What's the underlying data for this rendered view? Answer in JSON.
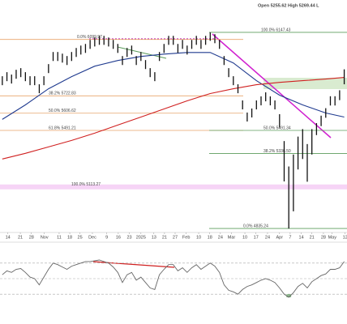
{
  "chart_data": {
    "type": "ohlc",
    "header": "Open 5255.62   High 5269.44   L",
    "xlim": [
      -0.5,
      74.6
    ],
    "ylim": [
      4765,
      6364
    ],
    "bar_color": "#111111",
    "high": [
      5854,
      5881,
      5865,
      5897,
      5908,
      5881,
      5854,
      5854,
      5800,
      5854,
      5935,
      6016,
      6016,
      6005,
      5989,
      6016,
      6043,
      6059,
      6070,
      6097,
      6113,
      6124,
      6124,
      6113,
      6097,
      6070,
      5989,
      6043,
      6059,
      5989,
      6016,
      5962,
      5908,
      5881,
      6016,
      6070,
      6124,
      6124,
      6070,
      6097,
      6059,
      6097,
      6124,
      6097,
      6124,
      6147,
      6135,
      6097,
      5989,
      5908,
      5854,
      5800,
      5692,
      5611,
      5638,
      5692,
      5719,
      5746,
      5719,
      5692,
      5600,
      5420,
      5250,
      5330,
      5450,
      5500,
      5400,
      5500,
      5540,
      5590,
      5640,
      5720,
      5720,
      5760,
      5900
    ],
    "low": [
      5794,
      5821,
      5805,
      5837,
      5848,
      5821,
      5794,
      5794,
      5740,
      5794,
      5875,
      5956,
      5956,
      5945,
      5929,
      5956,
      5983,
      5999,
      6010,
      6037,
      6053,
      6064,
      6064,
      6053,
      6037,
      6010,
      5929,
      5983,
      5999,
      5929,
      5956,
      5902,
      5848,
      5821,
      5956,
      6010,
      6064,
      6064,
      6010,
      6037,
      5999,
      6037,
      6064,
      6037,
      6064,
      6091,
      6075,
      6037,
      5929,
      5848,
      5794,
      5740,
      5632,
      5551,
      5578,
      5632,
      5659,
      5686,
      5659,
      5632,
      5510,
      5150,
      4835,
      4950,
      5230,
      5300,
      5148,
      5330,
      5460,
      5520,
      5576,
      5658,
      5658,
      5694,
      5800
    ],
    "series": [
      {
        "color": "#1f3a8f",
        "x": [
          0,
          5,
          10,
          15,
          20,
          25,
          30,
          35,
          40,
          45,
          50,
          55,
          60,
          65,
          70,
          74
        ],
        "values": [
          5565,
          5662,
          5770,
          5851,
          5921,
          5959,
          5986,
          6002,
          6013,
          6013,
          5943,
          5824,
          5727,
          5662,
          5608,
          5581
        ]
      },
      {
        "color": "#d02020",
        "x": [
          0,
          5,
          10,
          15,
          20,
          25,
          30,
          35,
          40,
          45,
          50,
          55,
          60,
          65,
          70,
          74
        ],
        "values": [
          5300,
          5338,
          5381,
          5424,
          5473,
          5527,
          5581,
          5635,
          5689,
          5738,
          5770,
          5797,
          5813,
          5824,
          5835,
          5846
        ]
      }
    ],
    "fib_left": [
      {
        "value": 6099.97,
        "label": "0.0% 6099.97",
        "color": "#e8a36a"
      },
      {
        "value": 5722.83,
        "label": "38.2% 5722.83",
        "color": "#e8a36a"
      },
      {
        "value": 5606.62,
        "label": "50.0% 5606.62",
        "color": "#e8a36a"
      },
      {
        "value": 5491.21,
        "label": "61.8% 5491.21",
        "color": "#e8a36a"
      },
      {
        "value": 5113.27,
        "label": "100.0% 5113.27",
        "color": "#e070e0"
      }
    ],
    "fib_right": [
      {
        "value": 6147.43,
        "label": "100.0% 6147.43",
        "color": "#5c9c5c"
      },
      {
        "value": 5491.34,
        "label": "50.0% 5491.34",
        "color": "#5c9c5c"
      },
      {
        "value": 5336.5,
        "label": "38.2% 5336.50",
        "color": "#5c9c5c"
      },
      {
        "value": 4835.24,
        "label": "0.0% 4835.24",
        "color": "#5c9c5c"
      }
    ],
    "xticks": [
      {
        "value": 1.2,
        "label": "14"
      },
      {
        "value": 3.9,
        "label": "21"
      },
      {
        "value": 6.3,
        "label": "28"
      },
      {
        "value": 9.1,
        "label": "Nov"
      },
      {
        "value": 12.3,
        "label": "11"
      },
      {
        "value": 14.6,
        "label": "18"
      },
      {
        "value": 16.8,
        "label": "25"
      },
      {
        "value": 19.5,
        "label": "Dec"
      },
      {
        "value": 22.6,
        "label": "9"
      },
      {
        "value": 25.1,
        "label": "16"
      },
      {
        "value": 27.5,
        "label": "23"
      },
      {
        "value": 30,
        "label": "2025"
      },
      {
        "value": 32.8,
        "label": "13"
      },
      {
        "value": 35.1,
        "label": "21"
      },
      {
        "value": 37.4,
        "label": "27"
      },
      {
        "value": 39.8,
        "label": "Feb"
      },
      {
        "value": 42.5,
        "label": "10"
      },
      {
        "value": 44.9,
        "label": "18"
      },
      {
        "value": 47.2,
        "label": "24"
      },
      {
        "value": 49.6,
        "label": "Mar"
      },
      {
        "value": 52.5,
        "label": "10"
      },
      {
        "value": 54.9,
        "label": "17"
      },
      {
        "value": 57.4,
        "label": "24"
      },
      {
        "value": 60,
        "label": "Apr"
      },
      {
        "value": 62.3,
        "label": "7"
      },
      {
        "value": 64.7,
        "label": "14"
      },
      {
        "value": 67,
        "label": "21"
      },
      {
        "value": 69.5,
        "label": "28"
      },
      {
        "value": 71.4,
        "label": "May"
      },
      {
        "value": 74.2,
        "label": "12"
      }
    ],
    "rsi": {
      "color": "#666666",
      "ylim": [
        0,
        100
      ],
      "guides": [
        30,
        50,
        70
      ],
      "values": [
        55,
        60,
        58,
        62,
        63,
        58,
        52,
        50,
        42,
        52,
        62,
        70,
        68,
        65,
        62,
        66,
        68,
        70,
        72,
        72,
        73,
        74,
        72,
        70,
        65,
        58,
        45,
        55,
        58,
        48,
        52,
        45,
        38,
        36,
        55,
        62,
        68,
        68,
        60,
        64,
        58,
        64,
        68,
        62,
        66,
        70,
        66,
        58,
        42,
        35,
        33,
        30,
        36,
        40,
        42,
        45,
        48,
        50,
        48,
        45,
        38,
        30,
        26,
        32,
        40,
        44,
        38,
        46,
        50,
        54,
        56,
        62,
        62,
        64,
        72
      ]
    }
  }
}
